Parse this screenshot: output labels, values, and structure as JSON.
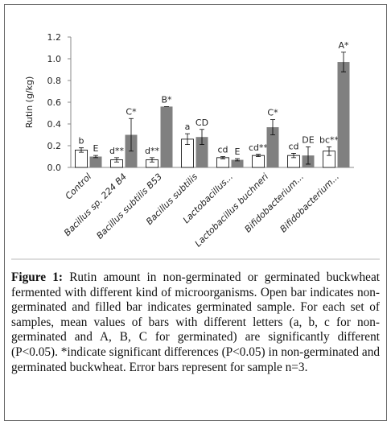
{
  "chart_data": {
    "type": "bar",
    "y_label": "Rutin (g/kg)",
    "categories": [
      "Control",
      "Bacillus sp. 224 B4",
      "Bacillus subtilis B53",
      "Bacillus subtilis",
      "Lactobacillus...",
      "Lactobacillus buchneri",
      "Bifidobacterium...",
      "Bifidobacterium..."
    ],
    "series": [
      {
        "color": "#ffffff",
        "values": [
          0.16,
          0.07,
          0.07,
          0.26,
          0.09,
          0.11,
          0.11,
          0.15
        ],
        "errors": [
          0.02,
          0.02,
          0.02,
          0.05,
          0.01,
          0.01,
          0.02,
          0.04
        ],
        "letters": [
          "b",
          "d**",
          "d**",
          "a",
          "cd",
          "cd**",
          "cd",
          "bc**"
        ]
      },
      {
        "color": "#808080",
        "values": [
          0.1,
          0.3,
          0.56,
          0.28,
          0.07,
          0.37,
          0.11,
          0.97
        ],
        "errors": [
          0.01,
          0.15,
          0,
          0.07,
          0.01,
          0.07,
          0.08,
          0.09
        ],
        "letters": [
          "E",
          "C*",
          "B*",
          "CD",
          "E",
          "C*",
          "DE",
          "A*"
        ]
      }
    ],
    "ylim": [
      0,
      1.2
    ],
    "yticks": [
      {
        "value": 0,
        "label": "0.0"
      },
      0.2,
      0.4,
      0.6,
      0.8,
      {
        "value": 1,
        "label": "1.0"
      },
      1.2
    ],
    "grid": false
  },
  "caption": {
    "label": "Figure 1:",
    "text": " Rutin amount in non-germinated or germinated buckwheat fermented with different kind of microorganisms. Open bar indicates non-germinated and filled bar indicates germinated sample. For each set of samples, mean values of bars with different letters (a, b, c for non-germinated and A, B, C for germinated) are significantly different (P<0.05). *indicate significant differences (P<0.05) in non-germinated and germinated buckwheat. Error bars represent for sample n=3."
  }
}
